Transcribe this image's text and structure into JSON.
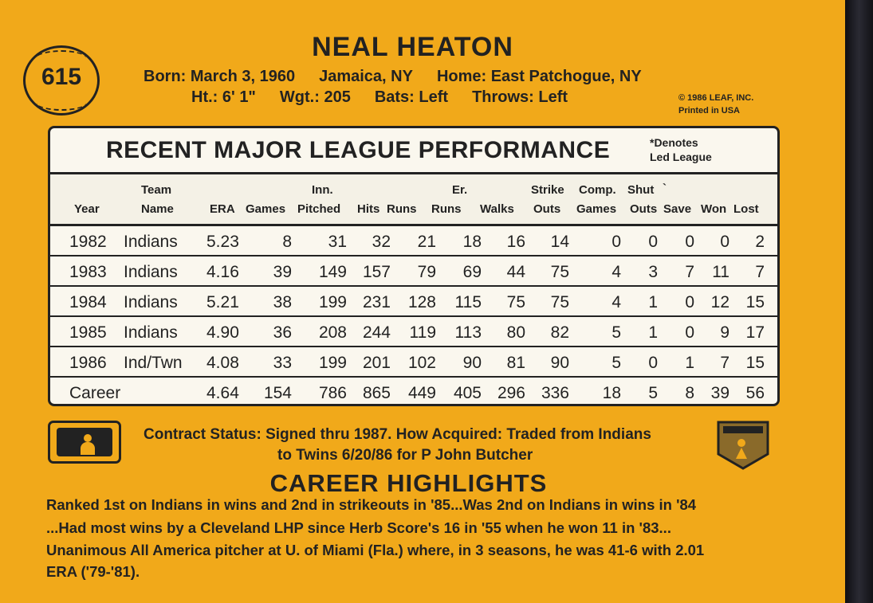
{
  "card_number": "615",
  "player_name": "NEAL HEATON",
  "bio": {
    "born": "Born: March 3, 1960",
    "birthplace": "Jamaica, NY",
    "home": "Home: East Patchogue, NY",
    "height": "Ht.: 6' 1\"",
    "weight": "Wgt.: 205",
    "bats": "Bats: Left",
    "throws": "Throws: Left"
  },
  "copyright": {
    "line1": "© 1986 LEAF, INC.",
    "line2": "Printed in USA"
  },
  "stats": {
    "title": "RECENT MAJOR LEAGUE PERFORMANCE",
    "note_line1": "*Denotes",
    "note_line2": "Led League",
    "headers": {
      "year": "Year",
      "team_1": "Team",
      "team_2": "Name",
      "era": "ERA",
      "games": "Games",
      "inn_1": "Inn.",
      "inn_2": "Pitched",
      "hits": "Hits",
      "runs": "Runs",
      "er_1": "Er.",
      "er_2": "Runs",
      "walks": "Walks",
      "so_1": "Strike",
      "so_2": "Outs",
      "cg_1": "Comp.",
      "cg_2": "Games",
      "sho_1": "Shut",
      "sho_2": "Outs",
      "tick": "`",
      "save": "Save",
      "won": "Won",
      "lost": "Lost"
    },
    "rows": [
      {
        "year": "1982",
        "team": "Indians",
        "era": "5.23",
        "games": "8",
        "inn": "31",
        "hits": "32",
        "runs": "21",
        "er": "18",
        "walks": "16",
        "so": "14",
        "cg": "0",
        "sho": "0",
        "save": "0",
        "won": "0",
        "lost": "2"
      },
      {
        "year": "1983",
        "team": "Indians",
        "era": "4.16",
        "games": "39",
        "inn": "149",
        "hits": "157",
        "runs": "79",
        "er": "69",
        "walks": "44",
        "so": "75",
        "cg": "4",
        "sho": "3",
        "save": "7",
        "won": "11",
        "lost": "7"
      },
      {
        "year": "1984",
        "team": "Indians",
        "era": "5.21",
        "games": "38",
        "inn": "199",
        "hits": "231",
        "runs": "128",
        "er": "115",
        "walks": "75",
        "so": "75",
        "cg": "4",
        "sho": "1",
        "save": "0",
        "won": "12",
        "lost": "15"
      },
      {
        "year": "1985",
        "team": "Indians",
        "era": "4.90",
        "games": "36",
        "inn": "208",
        "hits": "244",
        "runs": "119",
        "er": "113",
        "walks": "80",
        "so": "82",
        "cg": "5",
        "sho": "1",
        "save": "0",
        "won": "9",
        "lost": "17"
      },
      {
        "year": "1986",
        "team": "Ind/Twn",
        "era": "4.08",
        "games": "33",
        "inn": "199",
        "hits": "201",
        "runs": "102",
        "er": "90",
        "walks": "81",
        "so": "90",
        "cg": "5",
        "sho": "0",
        "save": "1",
        "won": "7",
        "lost": "15"
      },
      {
        "year": "Career",
        "team": "",
        "era": "4.64",
        "games": "154",
        "inn": "786",
        "hits": "865",
        "runs": "449",
        "er": "405",
        "walks": "296",
        "so": "336",
        "cg": "18",
        "sho": "5",
        "save": "8",
        "won": "39",
        "lost": "56"
      }
    ]
  },
  "contract": {
    "line1": "Contract Status: Signed thru 1987. How Acquired: Traded from Indians",
    "line2": "to Twins 6/20/86 for P John Butcher"
  },
  "highlights": {
    "title": "CAREER HIGHLIGHTS",
    "lines": [
      "Ranked 1st on Indians in wins and 2nd in strikeouts in '85...Was 2nd on Indians in wins in '84",
      "...Had most wins by a Cleveland LHP since Herb Score's 16 in '55 when he won 11 in '83...",
      "Unanimous All America pitcher at U. of Miami (Fla.) where, in 3 seasons, he was 41-6 with 2.01",
      "ERA ('79-'81)."
    ]
  },
  "colors": {
    "card": "#f1a91a",
    "ink": "#222222",
    "table_bg": "#faf7ee"
  }
}
